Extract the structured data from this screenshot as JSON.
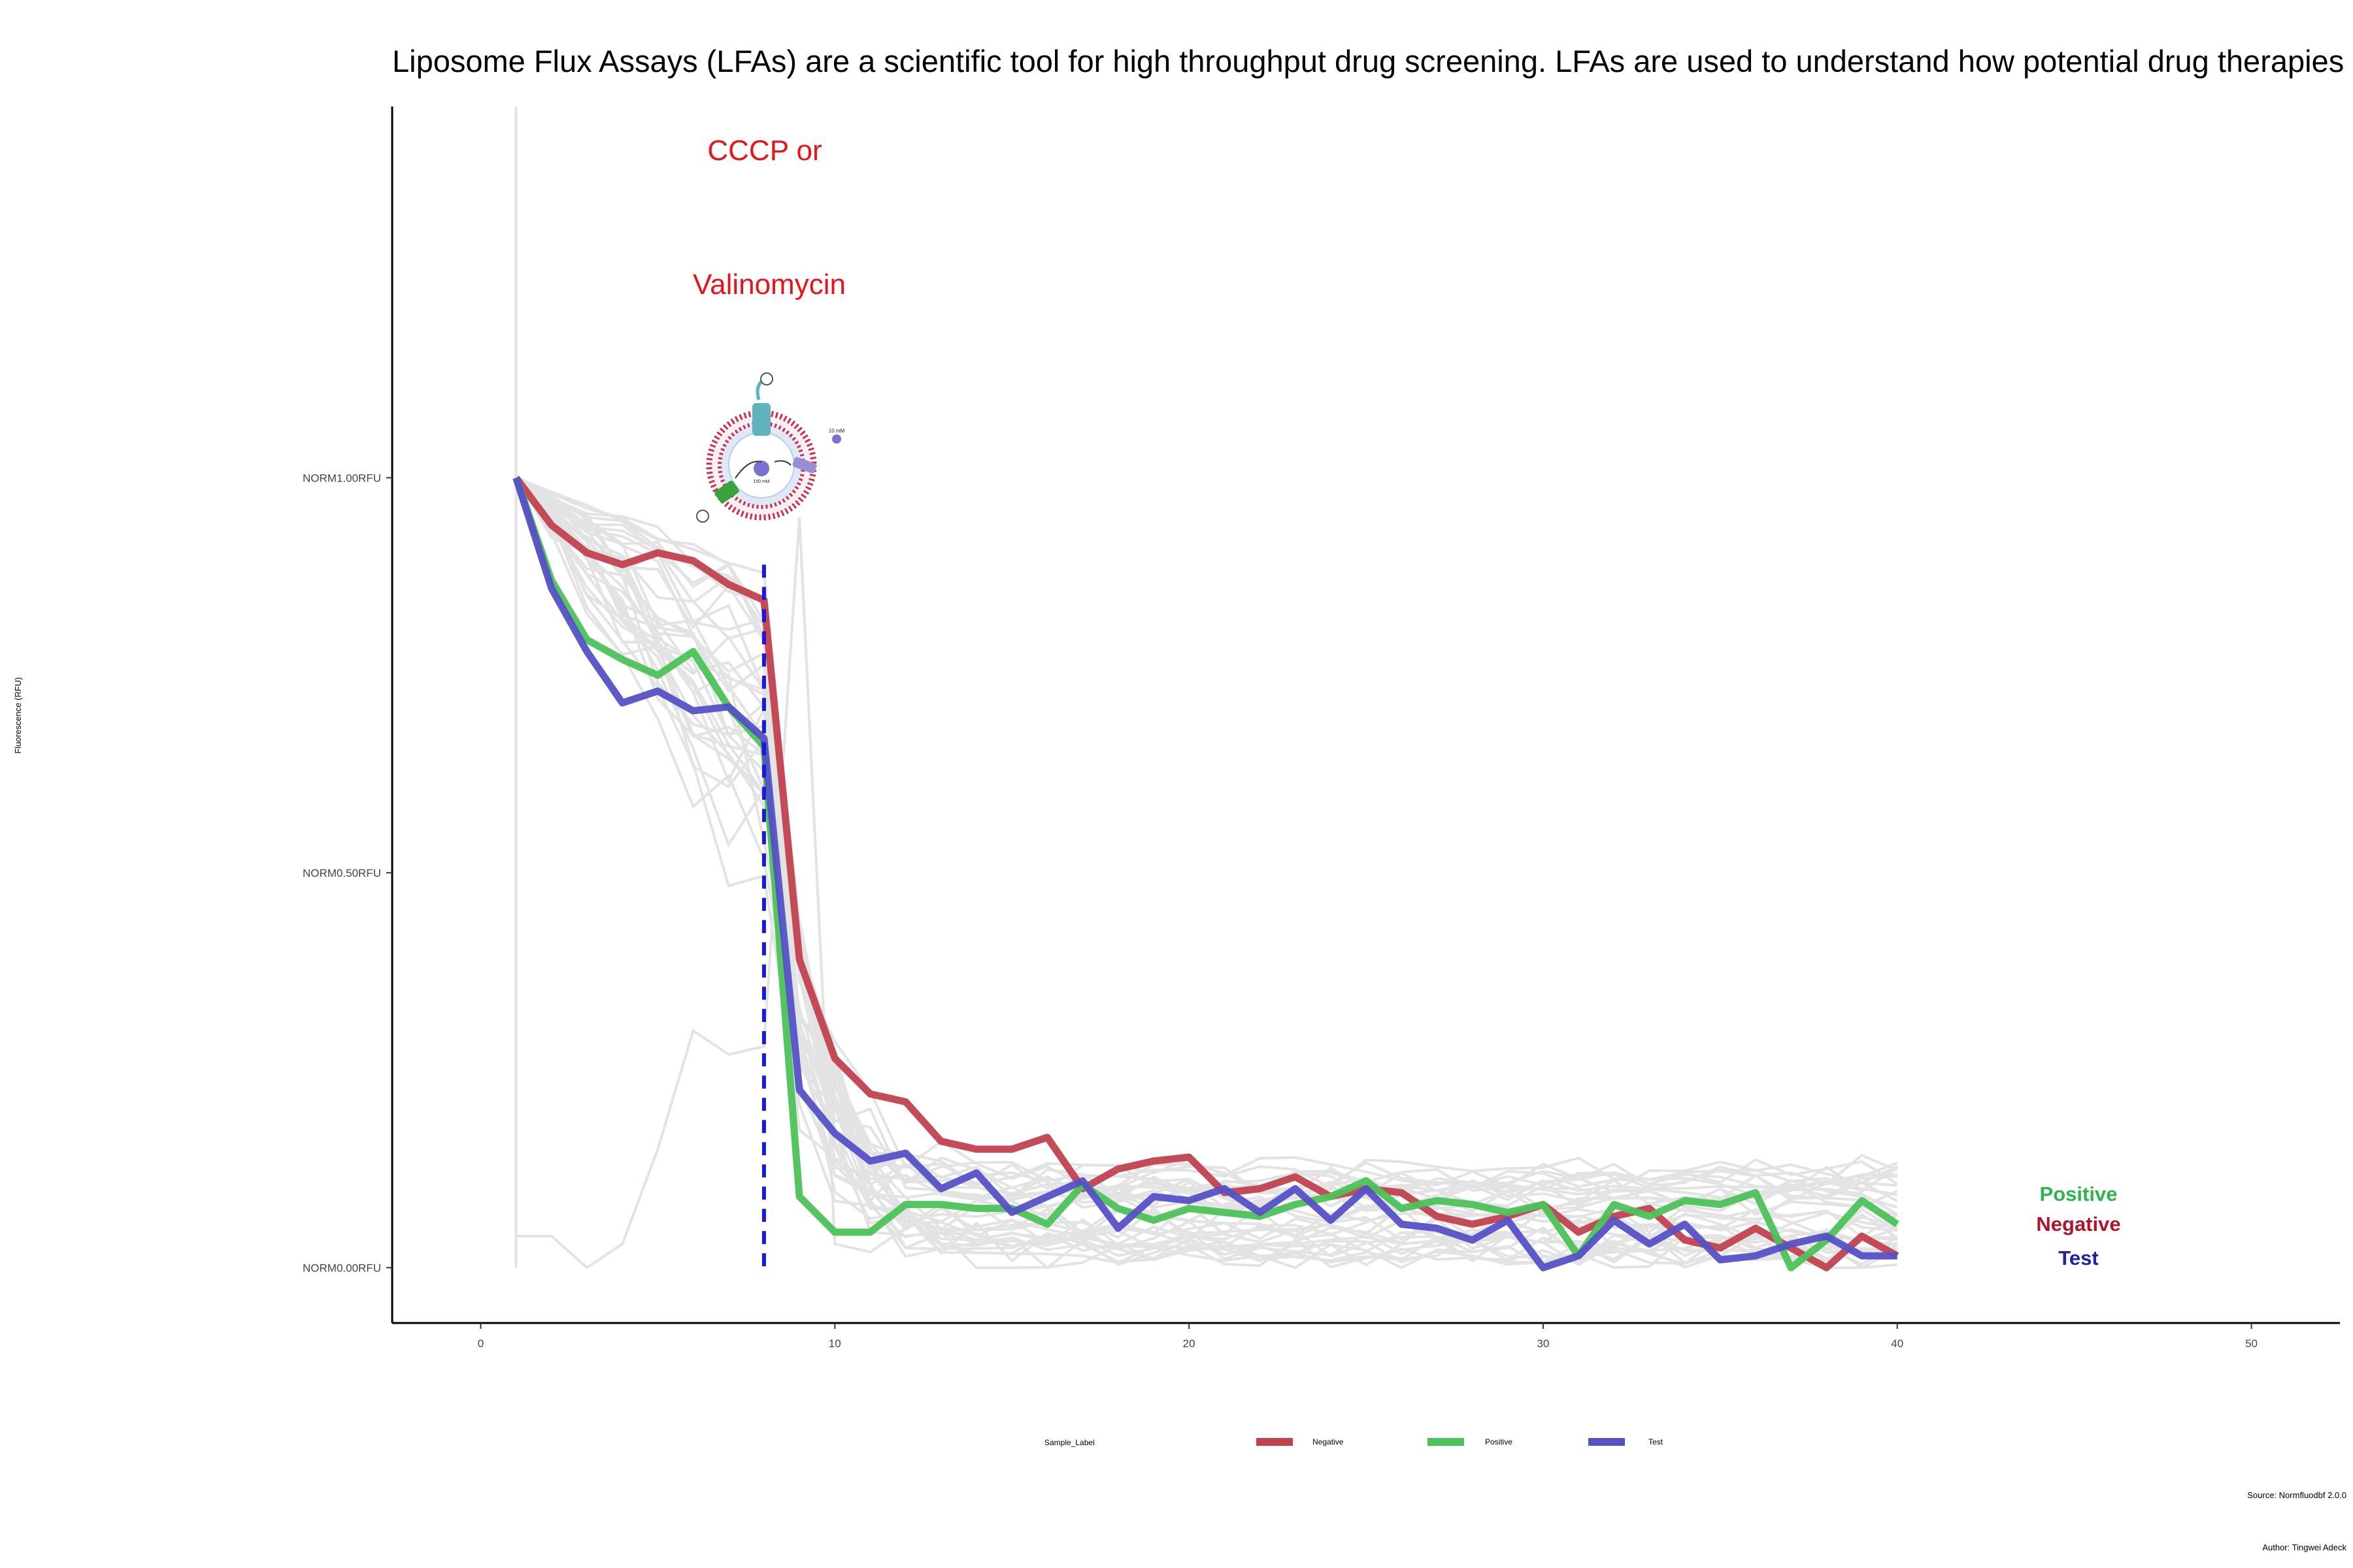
{
  "chart_data": {
    "type": "line",
    "title": "Liposome Flux Assays (LFAs) are a scientific tool for high throughput drug screening. LFAs are used to understand how potential drug therapies",
    "ylabel": "Fluorescence (RFU)",
    "xlabel": "",
    "xlim": [
      -2.5,
      52.5
    ],
    "ylim": [
      -0.07,
      1.47
    ],
    "x_ticks": [
      0,
      10,
      20,
      30,
      40,
      50
    ],
    "x_tick_labels": [
      "0",
      "10",
      "20",
      "30",
      "40",
      "50"
    ],
    "y_ticks": [
      0,
      0.5,
      1
    ],
    "y_tick_labels": [
      "NORM0.00RFU",
      "NORM0.50RFU",
      "NORM1.00RFU"
    ],
    "grid": false,
    "legend_position": "bottom",
    "legend_title": "Sample_Label",
    "annotations": {
      "reagent_line1": "CCCP or",
      "reagent_line2": "Valinomycin",
      "reagent_color": "#e8141c",
      "addition_x": 8
    },
    "series": [
      {
        "name": "Negative",
        "color": "#c0424f",
        "x": [
          1,
          2,
          3,
          4,
          5,
          6,
          7,
          8,
          9,
          10,
          11,
          12,
          13,
          14,
          15,
          16,
          17,
          18,
          19,
          20,
          21,
          22,
          23,
          24,
          25,
          26,
          27,
          28,
          29,
          30,
          31,
          32,
          33,
          34,
          35,
          36,
          37,
          38,
          39,
          40
        ],
        "values": [
          1.0,
          0.94,
          0.905,
          0.89,
          0.905,
          0.895,
          0.865,
          0.845,
          0.39,
          0.265,
          0.22,
          0.21,
          0.16,
          0.15,
          0.15,
          0.165,
          0.1,
          0.125,
          0.135,
          0.14,
          0.095,
          0.1,
          0.115,
          0.09,
          0.1,
          0.095,
          0.065,
          0.055,
          0.065,
          0.08,
          0.045,
          0.065,
          0.075,
          0.035,
          0.025,
          0.05,
          0.025,
          0.0,
          0.04,
          0.015
        ]
      },
      {
        "name": "Positive",
        "color": "#4cc25a",
        "x": [
          1,
          2,
          3,
          4,
          5,
          6,
          7,
          8,
          9,
          10,
          11,
          12,
          13,
          14,
          15,
          16,
          17,
          18,
          19,
          20,
          21,
          22,
          23,
          24,
          25,
          26,
          27,
          28,
          29,
          30,
          31,
          32,
          33,
          34,
          35,
          36,
          37,
          38,
          39,
          40
        ],
        "values": [
          1.0,
          0.87,
          0.795,
          0.77,
          0.75,
          0.78,
          0.71,
          0.66,
          0.09,
          0.045,
          0.045,
          0.08,
          0.08,
          0.075,
          0.075,
          0.055,
          0.105,
          0.075,
          0.06,
          0.075,
          0.07,
          0.065,
          0.08,
          0.09,
          0.11,
          0.075,
          0.085,
          0.08,
          0.07,
          0.08,
          0.015,
          0.08,
          0.065,
          0.085,
          0.08,
          0.095,
          0.0,
          0.035,
          0.085,
          0.055
        ]
      },
      {
        "name": "Test",
        "color": "#5551c6",
        "x": [
          1,
          2,
          3,
          4,
          5,
          6,
          7,
          8,
          9,
          10,
          11,
          12,
          13,
          14,
          15,
          16,
          17,
          18,
          19,
          20,
          21,
          22,
          23,
          24,
          25,
          26,
          27,
          28,
          29,
          30,
          31,
          32,
          33,
          34,
          35,
          36,
          37,
          38,
          39,
          40
        ],
        "values": [
          1.0,
          0.86,
          0.78,
          0.715,
          0.73,
          0.705,
          0.71,
          0.67,
          0.225,
          0.17,
          0.135,
          0.145,
          0.1,
          0.12,
          0.07,
          0.09,
          0.11,
          0.05,
          0.09,
          0.085,
          0.1,
          0.07,
          0.1,
          0.06,
          0.1,
          0.055,
          0.05,
          0.035,
          0.06,
          0.0,
          0.015,
          0.06,
          0.03,
          0.055,
          0.01,
          0.015,
          0.03,
          0.04,
          0.015,
          0.015
        ]
      }
    ]
  },
  "end_labels": [
    {
      "text": "Positive",
      "color": "#2fb34a"
    },
    {
      "text": "Negative",
      "color": "#b0152c"
    },
    {
      "text": "Test",
      "color": "#1e22a6"
    }
  ],
  "footer": {
    "source": "Source: Normfluodbf 2.0.0",
    "author": "Author: Tingwei Adeck"
  },
  "colors": {
    "background_lines": "#e3e3e3",
    "dashed_line": "#1a1ad0",
    "axis": "#000000"
  },
  "illustration": {
    "icon": "liposome-diagram-icon",
    "label_a": "10 mM",
    "label_b": "150 mM"
  }
}
